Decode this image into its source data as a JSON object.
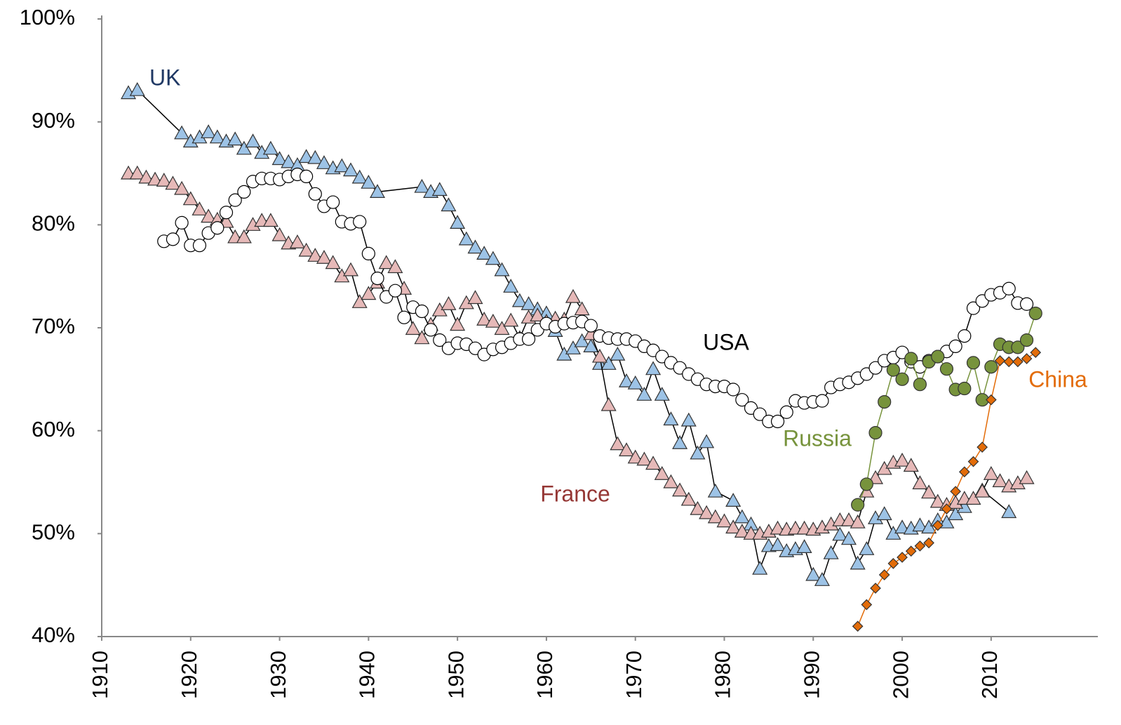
{
  "chart_data": {
    "type": "line",
    "xlim": [
      1910,
      2022
    ],
    "xticks": [
      1910,
      1920,
      1930,
      1940,
      1950,
      1960,
      1970,
      1980,
      1990,
      2000,
      2010
    ],
    "ylim": [
      40,
      100
    ],
    "yticks": [
      {
        "value": 40,
        "label": "40%"
      },
      {
        "value": 50,
        "label": "50%"
      },
      {
        "value": 60,
        "label": "60%"
      },
      {
        "value": 70,
        "label": "70%"
      },
      {
        "value": 80,
        "label": "80%"
      },
      {
        "value": 90,
        "label": "90%"
      },
      {
        "value": 100,
        "label": "100%"
      }
    ],
    "grid": false,
    "series": [
      {
        "name": "UK",
        "label_color": "#1f3864",
        "color": "#9dc3e6",
        "line_color": "#000000",
        "marker": "triangle",
        "x": [
          1913,
          1914,
          1919,
          1920,
          1921,
          1922,
          1923,
          1924,
          1925,
          1926,
          1927,
          1928,
          1929,
          1930,
          1931,
          1932,
          1933,
          1934,
          1935,
          1936,
          1937,
          1938,
          1939,
          1940,
          1941,
          1946,
          1947,
          1948,
          1949,
          1950,
          1951,
          1952,
          1953,
          1954,
          1955,
          1956,
          1957,
          1958,
          1959,
          1960,
          1961,
          1962,
          1963,
          1964,
          1965,
          1966,
          1967,
          1968,
          1969,
          1970,
          1971,
          1972,
          1973,
          1974,
          1975,
          1976,
          1977,
          1978,
          1979,
          1981,
          1982,
          1983,
          1984,
          1985,
          1986,
          1987,
          1988,
          1989,
          1990,
          1991,
          1992,
          1993,
          1994,
          1995,
          1996,
          1997,
          1998,
          1999,
          2000,
          2001,
          2002,
          2003,
          2004,
          2005,
          2006,
          2007,
          2009,
          2012
        ],
        "values": [
          92.8,
          93.1,
          88.9,
          88.1,
          88.5,
          89.0,
          88.5,
          88.1,
          88.3,
          87.4,
          88.1,
          87.0,
          87.4,
          86.4,
          86.1,
          85.8,
          86.6,
          86.5,
          86.0,
          85.5,
          85.7,
          85.3,
          84.6,
          84.1,
          83.2,
          83.7,
          83.2,
          83.4,
          81.9,
          80.2,
          78.6,
          77.8,
          77.2,
          76.7,
          75.6,
          74.0,
          72.6,
          72.3,
          71.8,
          71.4,
          69.7,
          67.4,
          68.0,
          68.7,
          68.2,
          66.5,
          66.5,
          67.4,
          64.8,
          64.6,
          63.5,
          66.0,
          63.5,
          61.1,
          58.8,
          61.0,
          57.8,
          58.9,
          54.1,
          53.2,
          51.6,
          50.9,
          46.6,
          48.8,
          48.9,
          48.3,
          48.5,
          48.7,
          46.0,
          45.5,
          48.1,
          49.9,
          49.5,
          47.1,
          48.5,
          51.5,
          51.9,
          50.0,
          50.6,
          50.5,
          50.8,
          50.6,
          51.3,
          51.1,
          51.9,
          52.6,
          54.2,
          52.1
        ]
      },
      {
        "name": "France",
        "label_color": "#953735",
        "color": "#e6b9b8",
        "line_color": "#000000",
        "marker": "triangle",
        "x": [
          1913,
          1914,
          1915,
          1916,
          1917,
          1918,
          1919,
          1920,
          1921,
          1922,
          1923,
          1924,
          1925,
          1926,
          1927,
          1928,
          1929,
          1930,
          1931,
          1932,
          1933,
          1934,
          1935,
          1936,
          1937,
          1938,
          1939,
          1940,
          1941,
          1942,
          1943,
          1944,
          1945,
          1946,
          1947,
          1948,
          1949,
          1950,
          1951,
          1952,
          1953,
          1954,
          1955,
          1956,
          1957,
          1958,
          1959,
          1960,
          1961,
          1962,
          1963,
          1964,
          1965,
          1966,
          1967,
          1968,
          1969,
          1970,
          1971,
          1972,
          1973,
          1974,
          1975,
          1976,
          1977,
          1978,
          1979,
          1980,
          1981,
          1982,
          1983,
          1984,
          1985,
          1986,
          1987,
          1988,
          1989,
          1990,
          1991,
          1992,
          1993,
          1994,
          1995,
          1996,
          1997,
          1998,
          1999,
          2000,
          2001,
          2002,
          2003,
          2004,
          2005,
          2006,
          2007,
          2008,
          2009,
          2010,
          2011,
          2012,
          2013,
          2014
        ],
        "values": [
          85.0,
          85.0,
          84.6,
          84.4,
          84.3,
          84.0,
          83.5,
          82.5,
          81.5,
          80.8,
          80.5,
          80.3,
          78.8,
          78.8,
          80.0,
          80.4,
          80.4,
          79.0,
          78.2,
          78.3,
          77.5,
          77.0,
          76.8,
          76.3,
          75.0,
          75.6,
          72.5,
          73.3,
          74.4,
          76.3,
          75.9,
          73.8,
          69.9,
          69.0,
          70.3,
          71.7,
          72.3,
          70.3,
          72.4,
          72.9,
          70.8,
          70.6,
          69.9,
          70.7,
          69.0,
          71.0,
          71.2,
          70.6,
          70.9,
          70.8,
          73.0,
          71.8,
          69.4,
          67.2,
          62.5,
          58.7,
          58.1,
          57.4,
          57.2,
          56.8,
          55.8,
          55.0,
          54.2,
          53.3,
          52.4,
          52.0,
          51.6,
          51.2,
          50.6,
          50.2,
          50.0,
          50.0,
          50.2,
          50.5,
          50.4,
          50.5,
          50.5,
          50.4,
          50.6,
          50.9,
          51.3,
          51.3,
          51.1,
          54.1,
          55.4,
          56.3,
          56.9,
          57.1,
          56.6,
          54.9,
          54.0,
          53.1,
          52.8,
          53.0,
          53.4,
          53.4,
          54.1,
          55.8,
          55.1,
          54.6,
          54.9,
          55.4
        ]
      },
      {
        "name": "USA",
        "label_color": "#000000",
        "color": "#ffffff",
        "line_color": "#000000",
        "marker": "circle",
        "x": [
          1917,
          1918,
          1919,
          1920,
          1921,
          1922,
          1923,
          1924,
          1925,
          1926,
          1927,
          1928,
          1929,
          1930,
          1931,
          1932,
          1933,
          1934,
          1935,
          1936,
          1937,
          1938,
          1939,
          1940,
          1941,
          1942,
          1943,
          1944,
          1945,
          1946,
          1947,
          1948,
          1949,
          1950,
          1951,
          1952,
          1953,
          1954,
          1955,
          1956,
          1957,
          1958,
          1959,
          1960,
          1961,
          1962,
          1963,
          1964,
          1965,
          1966,
          1967,
          1968,
          1969,
          1970,
          1971,
          1972,
          1973,
          1974,
          1975,
          1976,
          1977,
          1978,
          1979,
          1980,
          1981,
          1982,
          1983,
          1984,
          1985,
          1986,
          1987,
          1988,
          1989,
          1990,
          1991,
          1992,
          1993,
          1994,
          1995,
          1996,
          1997,
          1998,
          1999,
          2000,
          2001,
          2002,
          2003,
          2004,
          2005,
          2006,
          2007,
          2008,
          2009,
          2010,
          2011,
          2012,
          2013,
          2014
        ],
        "values": [
          78.4,
          78.6,
          80.2,
          78.0,
          78.0,
          79.2,
          79.7,
          81.2,
          82.4,
          83.2,
          84.2,
          84.5,
          84.5,
          84.4,
          84.7,
          84.9,
          84.7,
          83.0,
          81.8,
          82.2,
          80.3,
          80.1,
          80.3,
          77.2,
          74.8,
          73.0,
          73.6,
          71.0,
          72.0,
          71.6,
          69.8,
          68.8,
          68.0,
          68.5,
          68.4,
          68.0,
          67.4,
          67.9,
          68.1,
          68.5,
          68.9,
          68.9,
          69.8,
          70.4,
          70.1,
          70.4,
          70.5,
          70.6,
          70.2,
          69.2,
          69.0,
          68.9,
          68.9,
          68.7,
          68.2,
          67.8,
          67.2,
          66.6,
          66.1,
          65.5,
          65.0,
          64.5,
          64.3,
          64.3,
          64.0,
          63.0,
          62.2,
          61.6,
          60.9,
          60.9,
          61.8,
          62.9,
          62.7,
          62.8,
          62.9,
          64.2,
          64.5,
          64.7,
          65.1,
          65.5,
          66.1,
          66.8,
          67.1,
          67.6,
          66.7,
          66.2,
          66.8,
          67.2,
          67.7,
          68.2,
          69.2,
          71.9,
          72.6,
          73.2,
          73.4,
          73.8,
          72.4,
          72.3
        ]
      },
      {
        "name": "Russia",
        "label_color": "#77933c",
        "color": "#77933c",
        "line_color": "#77933c",
        "marker": "circle",
        "x": [
          1995,
          1996,
          1997,
          1998,
          1999,
          2000,
          2001,
          2002,
          2003,
          2004,
          2005,
          2006,
          2007,
          2008,
          2009,
          2010,
          2011,
          2012,
          2013,
          2014,
          2015
        ],
        "values": [
          52.8,
          54.8,
          59.8,
          62.8,
          65.9,
          65.0,
          67.0,
          64.5,
          66.7,
          67.2,
          66.0,
          64.0,
          64.1,
          66.6,
          63.0,
          66.2,
          68.4,
          68.1,
          68.1,
          68.8,
          71.4
        ]
      },
      {
        "name": "China",
        "label_color": "#e36c09",
        "color": "#e36c09",
        "line_color": "#e36c09",
        "marker": "diamond",
        "x": [
          1995,
          1996,
          1997,
          1998,
          1999,
          2000,
          2001,
          2002,
          2003,
          2004,
          2005,
          2006,
          2007,
          2008,
          2009,
          2010,
          2011,
          2012,
          2013,
          2014,
          2015
        ],
        "values": [
          41.0,
          43.1,
          44.7,
          46.0,
          47.1,
          47.7,
          48.3,
          48.8,
          49.1,
          50.8,
          52.4,
          54.1,
          56.0,
          57.0,
          58.4,
          63.0,
          66.8,
          66.7,
          66.7,
          67.0,
          67.6
        ]
      }
    ]
  }
}
